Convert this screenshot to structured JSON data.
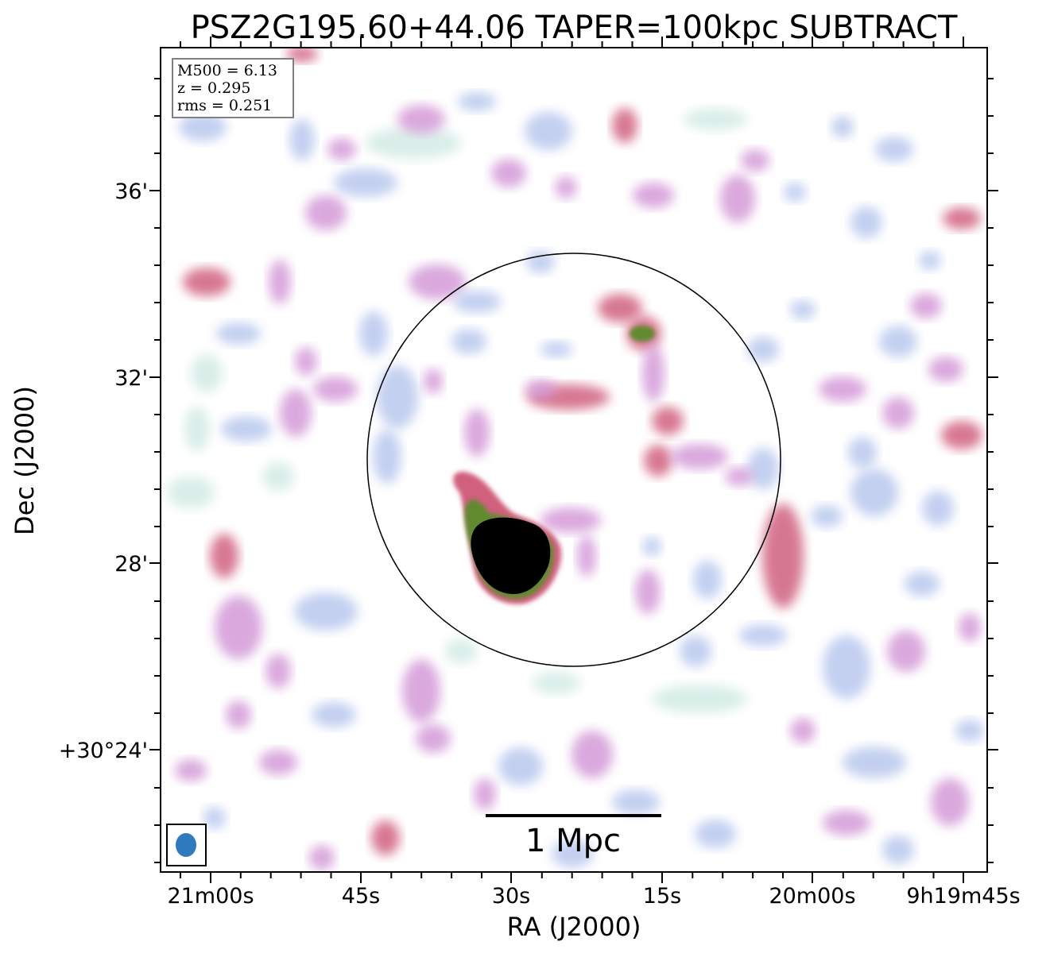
{
  "chart_data": {
    "type": "heatmap",
    "title": "PSZ2G195.60+44.06 TAPER=100kpc SUBTRACT",
    "xlabel": "RA (J2000)",
    "ylabel": "Dec (J2000)",
    "x_tick_labels": [
      "21m00s",
      "45s",
      "30s",
      "15s",
      "20m00s",
      "9h19m45s"
    ],
    "y_tick_labels": [
      "36'",
      "32'",
      "28'",
      "+30°24'"
    ],
    "info_box": [
      "M500 = 6.13",
      "z = 0.295",
      "rms = 0.251"
    ],
    "scale_bar_label": "1 Mpc",
    "colors": {
      "low": "#d6ece6",
      "mid_low": "#b9c8ee",
      "mid": "#d49ad8",
      "mid_high": "#d0607e",
      "high": "#5f8a2e",
      "peak": "#000000",
      "beam": "#2f7bbf",
      "frame": "#000000",
      "info_box_border": "#808080"
    }
  }
}
